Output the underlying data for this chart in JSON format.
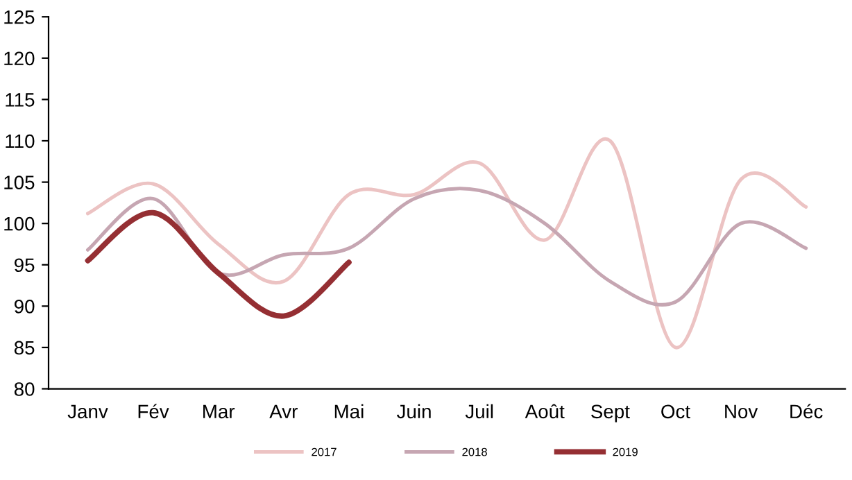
{
  "chart_data": {
    "type": "line",
    "categories": [
      "Janv",
      "Fév",
      "Mar",
      "Avr",
      "Mai",
      "Juin",
      "Juil",
      "Août",
      "Sept",
      "Oct",
      "Nov",
      "Déc"
    ],
    "series": [
      {
        "name": "2017",
        "color": "#ecc3c3",
        "values": [
          101.2,
          104.8,
          97.5,
          93,
          103.5,
          103.5,
          107.3,
          98,
          110,
          85,
          105.3,
          102
        ]
      },
      {
        "name": "2018",
        "color": "#c6a6b2",
        "values": [
          96.8,
          103,
          94,
          96.2,
          97,
          103,
          104,
          100,
          93,
          90.5,
          100,
          97
        ]
      },
      {
        "name": "2019",
        "color": "#952f33",
        "values": [
          95.5,
          101.3,
          94,
          88.8,
          95.3,
          null,
          null,
          null,
          null,
          null,
          null,
          null
        ]
      }
    ],
    "ylim": [
      80,
      125
    ],
    "yticks": [
      80,
      85,
      90,
      95,
      100,
      105,
      110,
      115,
      120,
      125
    ],
    "grid": false,
    "legend": "bottom",
    "marker": "none",
    "line_style": "solid"
  }
}
